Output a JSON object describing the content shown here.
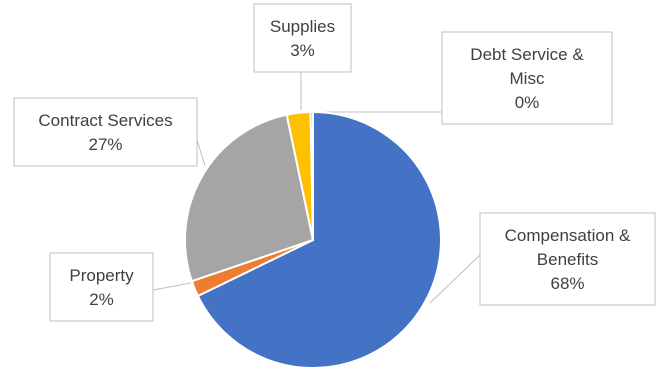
{
  "chart_data": {
    "type": "pie",
    "title": "",
    "start_angle_deg": 0,
    "slices": [
      {
        "label_lines": [
          "Compensation &",
          "Benefits"
        ],
        "percent_label": "68%",
        "value": 68,
        "color": "#4472C4"
      },
      {
        "label_lines": [
          "Property"
        ],
        "percent_label": "2%",
        "value": 2,
        "color": "#ED7D31"
      },
      {
        "label_lines": [
          "Contract Services"
        ],
        "percent_label": "27%",
        "value": 27,
        "color": "#A5A5A5"
      },
      {
        "label_lines": [
          "Supplies"
        ],
        "percent_label": "3%",
        "value": 3,
        "color": "#FFC000"
      },
      {
        "label_lines": [
          "Debt Service &",
          "Misc"
        ],
        "percent_label": "0%",
        "value": 0.3,
        "color": "#5B9BD5"
      }
    ]
  }
}
